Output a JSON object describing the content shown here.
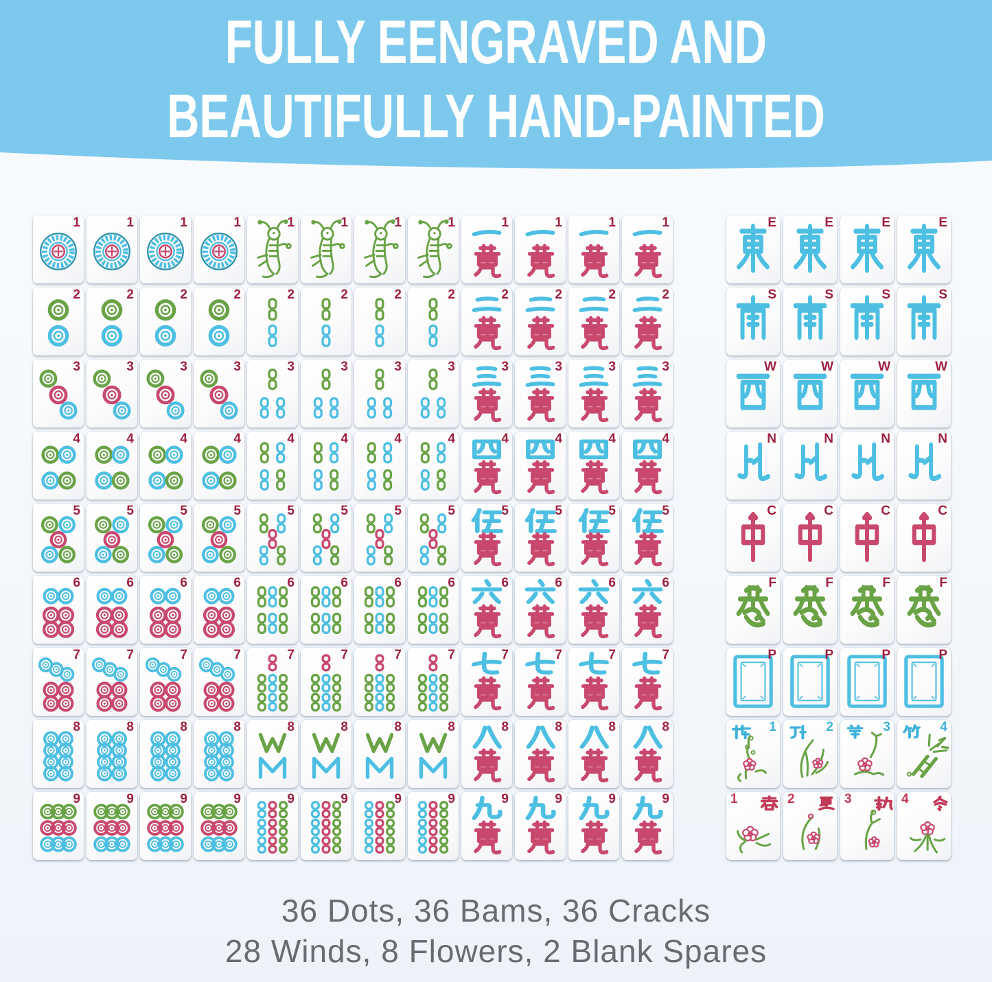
{
  "banner": {
    "line1": "FULLY EENGRAVED AND",
    "line2": "BEAUTIFULLY HAND-PAINTED"
  },
  "caption": {
    "line1": "36 Dots, 36 Bams, 36 Cracks",
    "line2": "28 Winds, 8 Flowers, 2 Blank Spares"
  },
  "colors": {
    "banner_bg": "#7dc9ee",
    "banner_text": "#ffffff",
    "caption_text": "#666c72",
    "blue": "#4dbfe2",
    "green": "#69a346",
    "pink": "#c9496e",
    "index_dark_red": "#9e2140",
    "flower_num_blue": "#3fb2da",
    "season_red": "#c23a58",
    "medallion_outline": "#2f95ad"
  },
  "left_grid": {
    "description": "9 rows x 12 tiles: four Dots, four Bams, four Cracks for each number 1-9",
    "values": [
      1,
      2,
      3,
      4,
      5,
      6,
      7,
      8,
      9
    ],
    "suits": [
      {
        "id": "dot",
        "copies": 4
      },
      {
        "id": "bam",
        "copies": 4
      },
      {
        "id": "crack",
        "copies": 4
      }
    ],
    "crack_chars": {
      "1": "一",
      "2": "二",
      "3": "三",
      "4": "四",
      "5": "伍",
      "6": "六",
      "7": "七",
      "8": "八",
      "9": "九",
      "suffix": "萬"
    },
    "pip_layouts": {
      "dots": {
        "2": [
          [
            "green",
            38,
            33,
            13
          ],
          [
            "blue",
            38,
            71,
            13
          ]
        ],
        "3": [
          [
            "green",
            23,
            28,
            11
          ],
          [
            "pink",
            38,
            52,
            11.5
          ],
          [
            "blue",
            53,
            75,
            11
          ]
        ],
        "4": [
          [
            "green",
            26,
            34,
            11
          ],
          [
            "blue",
            51,
            34,
            11
          ],
          [
            "blue",
            26,
            72,
            11
          ],
          [
            "green",
            51,
            72,
            11
          ]
        ],
        "5": [
          [
            "green",
            25,
            31,
            10.5
          ],
          [
            "blue",
            51,
            31,
            10.5
          ],
          [
            "pink",
            38,
            53,
            10.5
          ],
          [
            "blue",
            25,
            75,
            10.5
          ],
          [
            "green",
            51,
            75,
            10.5
          ]
        ],
        "6": [
          [
            "blue",
            27,
            30,
            10
          ],
          [
            "blue",
            49,
            30,
            10
          ],
          [
            "pink",
            27,
            58,
            10.5
          ],
          [
            "pink",
            49,
            58,
            10.5
          ],
          [
            "pink",
            27,
            79,
            10.5
          ],
          [
            "pink",
            49,
            79,
            10.5
          ]
        ],
        "7": [
          [
            "blue",
            19,
            25,
            9
          ],
          [
            "blue",
            35,
            32,
            9
          ],
          [
            "blue",
            51,
            39,
            9
          ],
          [
            "pink",
            27,
            62,
            10
          ],
          [
            "pink",
            49,
            62,
            10
          ],
          [
            "pink",
            27,
            82,
            10
          ],
          [
            "pink",
            49,
            82,
            10
          ]
        ],
        "8": [
          [
            "blue",
            27,
            28,
            9.5
          ],
          [
            "blue",
            49,
            28,
            9.5
          ],
          [
            "blue",
            27,
            45,
            9.5
          ],
          [
            "blue",
            49,
            45,
            9.5
          ],
          [
            "blue",
            27,
            62,
            9.5
          ],
          [
            "blue",
            49,
            62,
            9.5
          ],
          [
            "blue",
            27,
            79,
            9.5
          ],
          [
            "blue",
            49,
            79,
            9.5
          ]
        ],
        "9": [
          [
            "green",
            22,
            29,
            9.5
          ],
          [
            "green",
            38,
            29,
            9.5
          ],
          [
            "green",
            54,
            29,
            9.5
          ],
          [
            "pink",
            22,
            53,
            9.5
          ],
          [
            "pink",
            38,
            53,
            9.5
          ],
          [
            "pink",
            54,
            53,
            9.5
          ],
          [
            "blue",
            22,
            77,
            9.5
          ],
          [
            "blue",
            38,
            77,
            9.5
          ],
          [
            "blue",
            54,
            77,
            9.5
          ]
        ]
      },
      "bams": {
        "2": [
          [
            "green",
            38,
            32,
            30
          ],
          [
            "blue",
            38,
            71,
            30
          ]
        ],
        "3": [
          [
            "green",
            38,
            29,
            28
          ],
          [
            "blue",
            26,
            71,
            28
          ],
          [
            "blue",
            50,
            71,
            28
          ]
        ],
        "4": [
          [
            "green",
            26,
            31,
            28
          ],
          [
            "blue",
            50,
            31,
            28
          ],
          [
            "blue",
            26,
            71,
            28
          ],
          [
            "green",
            50,
            71,
            28
          ]
        ],
        "5": [
          [
            "green",
            25,
            29,
            26
          ],
          [
            "blue",
            51,
            29,
            26
          ],
          [
            "pink",
            38,
            52,
            26
          ],
          [
            "blue",
            25,
            76,
            26
          ],
          [
            "green",
            51,
            76,
            26
          ]
        ],
        "6": [
          [
            "green",
            22,
            31,
            28
          ],
          [
            "blue",
            38,
            31,
            28
          ],
          [
            "green",
            54,
            31,
            28
          ],
          [
            "green",
            22,
            70,
            28
          ],
          [
            "blue",
            38,
            70,
            28
          ],
          [
            "green",
            54,
            70,
            28
          ]
        ],
        "7": [
          [
            "pink",
            38,
            22,
            22
          ],
          [
            "green",
            22,
            52,
            24
          ],
          [
            "blue",
            38,
            52,
            24
          ],
          [
            "green",
            54,
            52,
            24
          ],
          [
            "green",
            22,
            80,
            24
          ],
          [
            "blue",
            38,
            80,
            24
          ],
          [
            "green",
            54,
            80,
            24
          ]
        ],
        "9": [
          [
            "blue",
            22,
            26,
            22
          ],
          [
            "pink",
            38,
            26,
            22
          ],
          [
            "green",
            54,
            26,
            22
          ],
          [
            "blue",
            22,
            52,
            22
          ],
          [
            "pink",
            38,
            52,
            22
          ],
          [
            "green",
            54,
            52,
            22
          ],
          [
            "blue",
            22,
            78,
            22
          ],
          [
            "pink",
            38,
            78,
            22
          ],
          [
            "green",
            54,
            78,
            22
          ]
        ]
      }
    }
  },
  "right_grid": {
    "rows": [
      {
        "id": "east",
        "kind": "wind",
        "char": "東",
        "corner": "E",
        "copies": 4,
        "color": "blue"
      },
      {
        "id": "south",
        "kind": "wind",
        "char": "南",
        "corner": "S",
        "copies": 4,
        "color": "blue"
      },
      {
        "id": "west",
        "kind": "wind",
        "char": "西",
        "corner": "W",
        "copies": 4,
        "color": "blue"
      },
      {
        "id": "north",
        "kind": "wind",
        "char": "北",
        "corner": "N",
        "copies": 4,
        "color": "blue"
      },
      {
        "id": "red-dragon",
        "kind": "dragon",
        "char": "中",
        "corner": "C",
        "copies": 4,
        "color": "pink"
      },
      {
        "id": "green-dragon",
        "kind": "dragon",
        "char": "發",
        "corner": "F",
        "copies": 4,
        "color": "green"
      },
      {
        "id": "white-dragon",
        "kind": "dragon",
        "char": "",
        "corner": "P",
        "copies": 4,
        "color": "blue"
      },
      {
        "id": "flowers",
        "kind": "flower-row",
        "tiles": [
          {
            "num": "1",
            "char": "梅"
          },
          {
            "num": "2",
            "char": "蘭"
          },
          {
            "num": "3",
            "char": "菊"
          },
          {
            "num": "4",
            "char": "竹"
          }
        ]
      },
      {
        "id": "seasons",
        "kind": "season-row",
        "tiles": [
          {
            "num": "1",
            "char": "春"
          },
          {
            "num": "2",
            "char": "夏"
          },
          {
            "num": "3",
            "char": "秋"
          },
          {
            "num": "4",
            "char": "冬"
          }
        ]
      }
    ]
  }
}
